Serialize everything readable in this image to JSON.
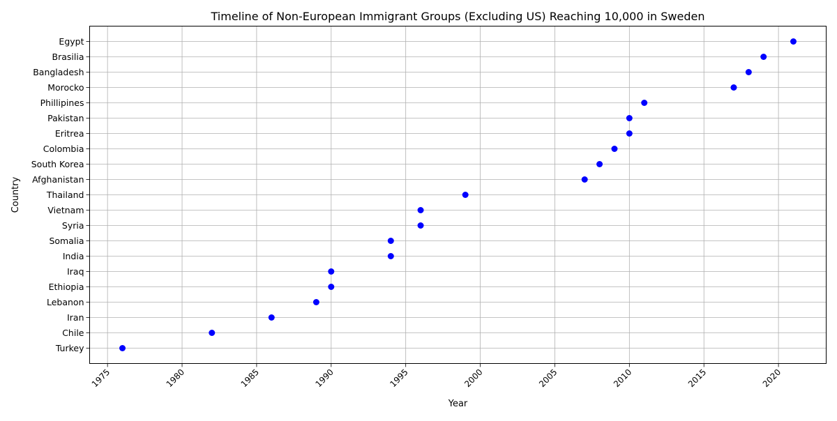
{
  "chart_data": {
    "type": "scatter",
    "title": "Timeline of Non-European Immigrant Groups (Excluding US) Reaching 10,000 in Sweden",
    "xlabel": "Year",
    "ylabel": "Country",
    "xlim": [
      1973.8,
      2023.2
    ],
    "x_ticks": [
      1975,
      1980,
      1985,
      1990,
      1995,
      2000,
      2005,
      2010,
      2015,
      2020
    ],
    "grid": true,
    "marker_color": "#0000ff",
    "points": [
      {
        "country": "Turkey",
        "year": 1976
      },
      {
        "country": "Chile",
        "year": 1982
      },
      {
        "country": "Iran",
        "year": 1986
      },
      {
        "country": "Lebanon",
        "year": 1989
      },
      {
        "country": "Ethiopia",
        "year": 1990
      },
      {
        "country": "Iraq",
        "year": 1990
      },
      {
        "country": "India",
        "year": 1994
      },
      {
        "country": "Somalia",
        "year": 1994
      },
      {
        "country": "Syria",
        "year": 1996
      },
      {
        "country": "Vietnam",
        "year": 1996
      },
      {
        "country": "Thailand",
        "year": 1999
      },
      {
        "country": "Afghanistan",
        "year": 2007
      },
      {
        "country": "South Korea",
        "year": 2008
      },
      {
        "country": "Colombia",
        "year": 2009
      },
      {
        "country": "Eritrea",
        "year": 2010
      },
      {
        "country": "Pakistan",
        "year": 2010
      },
      {
        "country": "Phillipines",
        "year": 2011
      },
      {
        "country": "Morocko",
        "year": 2017
      },
      {
        "country": "Bangladesh",
        "year": 2018
      },
      {
        "country": "Brasilia",
        "year": 2019
      },
      {
        "country": "Egypt",
        "year": 2021
      }
    ]
  }
}
